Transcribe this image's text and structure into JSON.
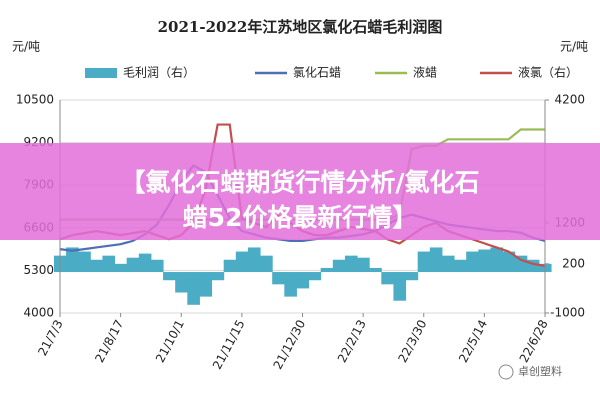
{
  "chart_data": {
    "type": "combo",
    "title": "2021-2022年江苏地区氯化石蜡毛利润图",
    "y_label": "元/吨",
    "y2_label": "元/吨",
    "categories": [
      "21/7/3",
      null,
      null,
      null,
      null,
      "21/8/17",
      null,
      null,
      null,
      null,
      "21/10/1",
      null,
      null,
      null,
      null,
      "21/11/15",
      null,
      null,
      null,
      null,
      "21/12/30",
      null,
      null,
      null,
      null,
      "22/2/13",
      null,
      null,
      null,
      null,
      "22/3/30",
      null,
      null,
      null,
      null,
      "22/5/14",
      null,
      null,
      null,
      null,
      "22/6/28"
    ],
    "ylim": [
      4000,
      10500
    ],
    "yticks": [
      4000,
      5300,
      6600,
      7900,
      9200,
      10500
    ],
    "y2lim": [
      -1000,
      4200
    ],
    "y2ticks": [
      -1000,
      200,
      1200,
      4200
    ],
    "grid": true,
    "series": [
      {
        "name": "毛利润（右）",
        "color": "#4bacc6",
        "kind": "area",
        "axis": "y2",
        "values": [
          400,
          600,
          500,
          300,
          400,
          200,
          350,
          450,
          300,
          -200,
          -500,
          -800,
          -600,
          -200,
          300,
          500,
          600,
          400,
          -300,
          -600,
          -400,
          -200,
          100,
          300,
          400,
          350,
          100,
          -300,
          -700,
          -200,
          500,
          600,
          400,
          300,
          500,
          550,
          600,
          500,
          400,
          300,
          200
        ]
      },
      {
        "name": "氯化石蜡",
        "color": "#4f6fb5",
        "kind": "line",
        "values": [
          5950,
          5900,
          5950,
          6000,
          6050,
          6100,
          6200,
          6400,
          6700,
          7300,
          8000,
          8500,
          8300,
          7600,
          6900,
          6500,
          6400,
          6300,
          6250,
          6200,
          6200,
          6250,
          6300,
          6300,
          6350,
          6400,
          6500,
          6700,
          6900,
          7000,
          6900,
          6800,
          6700,
          6650,
          6600,
          6550,
          6500,
          6500,
          6450,
          6300,
          6200
        ]
      },
      {
        "name": "液蜡",
        "color": "#9bbb59",
        "kind": "line",
        "values": [
          6850,
          6850,
          6850,
          6850,
          6850,
          6850,
          6850,
          6850,
          6850,
          6850,
          6850,
          6850,
          6850,
          6850,
          6850,
          6850,
          6850,
          6850,
          6850,
          6850,
          6850,
          6850,
          6850,
          6850,
          6850,
          6850,
          6850,
          6850,
          7000,
          9000,
          9100,
          9100,
          9300,
          9300,
          9300,
          9300,
          9300,
          9300,
          9600,
          9600,
          9600
        ]
      },
      {
        "name": "液氯（右）",
        "color": "#c0504d",
        "kind": "line",
        "axis": "y2",
        "values": [
          800,
          900,
          950,
          1000,
          950,
          900,
          950,
          1000,
          900,
          800,
          900,
          1200,
          2000,
          3600,
          3600,
          1300,
          1200,
          1100,
          1400,
          1200,
          1000,
          900,
          900,
          1000,
          1100,
          1050,
          1000,
          800,
          700,
          900,
          1100,
          1200,
          1000,
          900,
          800,
          700,
          600,
          500,
          300,
          200,
          150
        ]
      }
    ]
  },
  "overlay": {
    "lines": [
      "【氯化石蜡期货行情分析/氯化石",
      "蜡52价格最新行情】"
    ],
    "watermark": "卓创塑料"
  }
}
